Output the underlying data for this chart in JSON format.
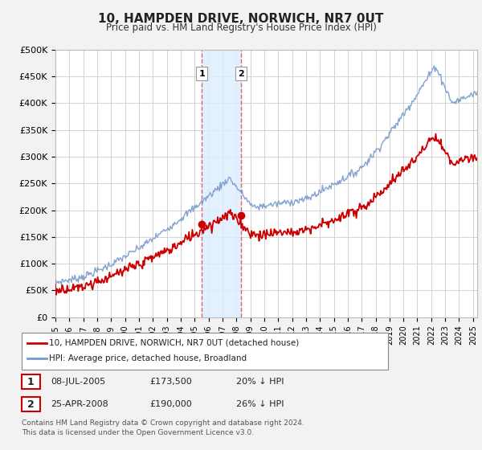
{
  "title": "10, HAMPDEN DRIVE, NORWICH, NR7 0UT",
  "subtitle": "Price paid vs. HM Land Registry's House Price Index (HPI)",
  "ylabel_ticks": [
    "£0",
    "£50K",
    "£100K",
    "£150K",
    "£200K",
    "£250K",
    "£300K",
    "£350K",
    "£400K",
    "£450K",
    "£500K"
  ],
  "ytick_values": [
    0,
    50000,
    100000,
    150000,
    200000,
    250000,
    300000,
    350000,
    400000,
    450000,
    500000
  ],
  "ylim": [
    0,
    500000
  ],
  "xlim_start": 1995.0,
  "xlim_end": 2025.3,
  "hpi_color": "#7799cc",
  "price_color": "#cc0000",
  "vline_color": "#dd6666",
  "span_color": "#ddeeff",
  "background_color": "#f2f2f2",
  "plot_bg_color": "#ffffff",
  "grid_color": "#cccccc",
  "legend_label_price": "10, HAMPDEN DRIVE, NORWICH, NR7 0UT (detached house)",
  "legend_label_hpi": "HPI: Average price, detached house, Broadland",
  "sale1_date": "08-JUL-2005",
  "sale1_price": "£173,500",
  "sale1_hpi": "20% ↓ HPI",
  "sale1_year": 2005.52,
  "sale1_value": 173500,
  "sale2_date": "25-APR-2008",
  "sale2_price": "£190,000",
  "sale2_hpi": "26% ↓ HPI",
  "sale2_year": 2008.32,
  "sale2_value": 190000,
  "footnote": "Contains HM Land Registry data © Crown copyright and database right 2024.\nThis data is licensed under the Open Government Licence v3.0."
}
